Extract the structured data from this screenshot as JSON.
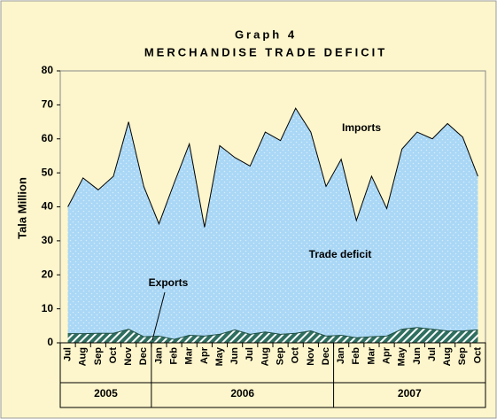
{
  "chart_data": {
    "type": "area",
    "title": "Graph 4",
    "subtitle": "MERCHANDISE TRADE DEFICIT",
    "y_label": "Tala Million",
    "categories": [
      "Jul",
      "Aug",
      "Sep",
      "Oct",
      "Nov",
      "Dec",
      "Jan",
      "Feb",
      "Mar",
      "Apr",
      "May",
      "Jun",
      "Jul",
      "Aug",
      "Sep",
      "Oct",
      "Nov",
      "Dec",
      "Jan",
      "Feb",
      "Mar",
      "Apr",
      "May",
      "Jun",
      "Jul",
      "Aug",
      "Sep",
      "Oct"
    ],
    "category_groups": [
      "2005",
      "2005",
      "2005",
      "2005",
      "2005",
      "2005",
      "2006",
      "2006",
      "2006",
      "2006",
      "2006",
      "2006",
      "2006",
      "2006",
      "2006",
      "2006",
      "2006",
      "2006",
      "2007",
      "2007",
      "2007",
      "2007",
      "2007",
      "2007",
      "2007",
      "2007",
      "2007",
      "2007"
    ],
    "series": [
      {
        "name": "Imports",
        "color": "#a9d7f5",
        "values": [
          40,
          48.5,
          45,
          49,
          65,
          46,
          35,
          47,
          58.5,
          34,
          58,
          54.5,
          52,
          62,
          59.5,
          69,
          62,
          46,
          54,
          36,
          49,
          39.5,
          57,
          62,
          60,
          64.5,
          60.5,
          49
        ]
      },
      {
        "name": "Exports",
        "color": "#2f6f60",
        "values": [
          2.7,
          2.7,
          2.8,
          2.8,
          4,
          1.8,
          2,
          1,
          2.2,
          2,
          2.5,
          3.8,
          2.5,
          3.2,
          2.5,
          2.8,
          3.5,
          2,
          2.2,
          1.5,
          1.8,
          2,
          4,
          4.5,
          4,
          3.5,
          3.5,
          3.8
        ]
      }
    ],
    "annotations": [
      "Imports",
      "Trade deficit",
      "Exports"
    ],
    "ylim": [
      0,
      80
    ],
    "yticks": [
      0,
      10,
      20,
      30,
      40,
      50,
      60,
      70,
      80
    ]
  }
}
